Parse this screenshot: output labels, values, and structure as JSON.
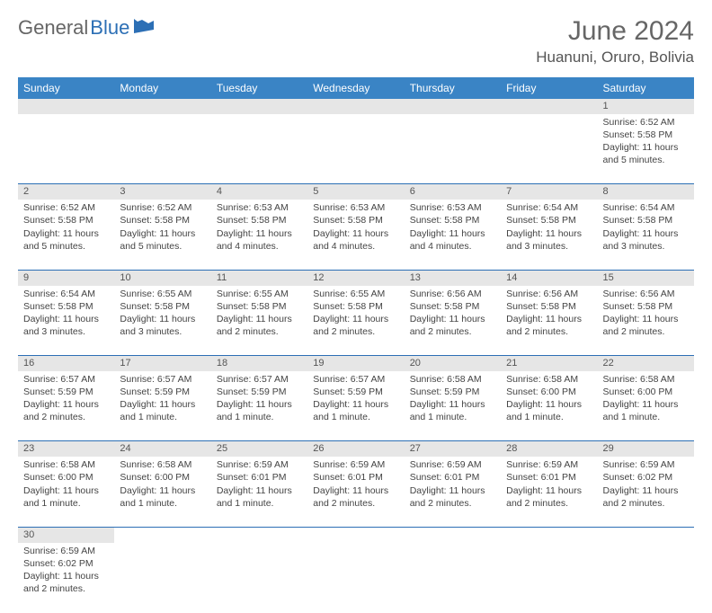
{
  "brand": {
    "part1": "General",
    "part2": "Blue"
  },
  "title": "June 2024",
  "location": "Huanuni, Oruro, Bolivia",
  "colors": {
    "header_bg": "#3a84c5",
    "border": "#2c6fb5",
    "daynum_bg": "#e6e6e6",
    "text": "#444444",
    "title_text": "#666666"
  },
  "weekdays": [
    "Sunday",
    "Monday",
    "Tuesday",
    "Wednesday",
    "Thursday",
    "Friday",
    "Saturday"
  ],
  "weeks": [
    [
      null,
      null,
      null,
      null,
      null,
      null,
      {
        "d": "1",
        "sr": "Sunrise: 6:52 AM",
        "ss": "Sunset: 5:58 PM",
        "dl": "Daylight: 11 hours and 5 minutes."
      }
    ],
    [
      {
        "d": "2",
        "sr": "Sunrise: 6:52 AM",
        "ss": "Sunset: 5:58 PM",
        "dl": "Daylight: 11 hours and 5 minutes."
      },
      {
        "d": "3",
        "sr": "Sunrise: 6:52 AM",
        "ss": "Sunset: 5:58 PM",
        "dl": "Daylight: 11 hours and 5 minutes."
      },
      {
        "d": "4",
        "sr": "Sunrise: 6:53 AM",
        "ss": "Sunset: 5:58 PM",
        "dl": "Daylight: 11 hours and 4 minutes."
      },
      {
        "d": "5",
        "sr": "Sunrise: 6:53 AM",
        "ss": "Sunset: 5:58 PM",
        "dl": "Daylight: 11 hours and 4 minutes."
      },
      {
        "d": "6",
        "sr": "Sunrise: 6:53 AM",
        "ss": "Sunset: 5:58 PM",
        "dl": "Daylight: 11 hours and 4 minutes."
      },
      {
        "d": "7",
        "sr": "Sunrise: 6:54 AM",
        "ss": "Sunset: 5:58 PM",
        "dl": "Daylight: 11 hours and 3 minutes."
      },
      {
        "d": "8",
        "sr": "Sunrise: 6:54 AM",
        "ss": "Sunset: 5:58 PM",
        "dl": "Daylight: 11 hours and 3 minutes."
      }
    ],
    [
      {
        "d": "9",
        "sr": "Sunrise: 6:54 AM",
        "ss": "Sunset: 5:58 PM",
        "dl": "Daylight: 11 hours and 3 minutes."
      },
      {
        "d": "10",
        "sr": "Sunrise: 6:55 AM",
        "ss": "Sunset: 5:58 PM",
        "dl": "Daylight: 11 hours and 3 minutes."
      },
      {
        "d": "11",
        "sr": "Sunrise: 6:55 AM",
        "ss": "Sunset: 5:58 PM",
        "dl": "Daylight: 11 hours and 2 minutes."
      },
      {
        "d": "12",
        "sr": "Sunrise: 6:55 AM",
        "ss": "Sunset: 5:58 PM",
        "dl": "Daylight: 11 hours and 2 minutes."
      },
      {
        "d": "13",
        "sr": "Sunrise: 6:56 AM",
        "ss": "Sunset: 5:58 PM",
        "dl": "Daylight: 11 hours and 2 minutes."
      },
      {
        "d": "14",
        "sr": "Sunrise: 6:56 AM",
        "ss": "Sunset: 5:58 PM",
        "dl": "Daylight: 11 hours and 2 minutes."
      },
      {
        "d": "15",
        "sr": "Sunrise: 6:56 AM",
        "ss": "Sunset: 5:58 PM",
        "dl": "Daylight: 11 hours and 2 minutes."
      }
    ],
    [
      {
        "d": "16",
        "sr": "Sunrise: 6:57 AM",
        "ss": "Sunset: 5:59 PM",
        "dl": "Daylight: 11 hours and 2 minutes."
      },
      {
        "d": "17",
        "sr": "Sunrise: 6:57 AM",
        "ss": "Sunset: 5:59 PM",
        "dl": "Daylight: 11 hours and 1 minute."
      },
      {
        "d": "18",
        "sr": "Sunrise: 6:57 AM",
        "ss": "Sunset: 5:59 PM",
        "dl": "Daylight: 11 hours and 1 minute."
      },
      {
        "d": "19",
        "sr": "Sunrise: 6:57 AM",
        "ss": "Sunset: 5:59 PM",
        "dl": "Daylight: 11 hours and 1 minute."
      },
      {
        "d": "20",
        "sr": "Sunrise: 6:58 AM",
        "ss": "Sunset: 5:59 PM",
        "dl": "Daylight: 11 hours and 1 minute."
      },
      {
        "d": "21",
        "sr": "Sunrise: 6:58 AM",
        "ss": "Sunset: 6:00 PM",
        "dl": "Daylight: 11 hours and 1 minute."
      },
      {
        "d": "22",
        "sr": "Sunrise: 6:58 AM",
        "ss": "Sunset: 6:00 PM",
        "dl": "Daylight: 11 hours and 1 minute."
      }
    ],
    [
      {
        "d": "23",
        "sr": "Sunrise: 6:58 AM",
        "ss": "Sunset: 6:00 PM",
        "dl": "Daylight: 11 hours and 1 minute."
      },
      {
        "d": "24",
        "sr": "Sunrise: 6:58 AM",
        "ss": "Sunset: 6:00 PM",
        "dl": "Daylight: 11 hours and 1 minute."
      },
      {
        "d": "25",
        "sr": "Sunrise: 6:59 AM",
        "ss": "Sunset: 6:01 PM",
        "dl": "Daylight: 11 hours and 1 minute."
      },
      {
        "d": "26",
        "sr": "Sunrise: 6:59 AM",
        "ss": "Sunset: 6:01 PM",
        "dl": "Daylight: 11 hours and 2 minutes."
      },
      {
        "d": "27",
        "sr": "Sunrise: 6:59 AM",
        "ss": "Sunset: 6:01 PM",
        "dl": "Daylight: 11 hours and 2 minutes."
      },
      {
        "d": "28",
        "sr": "Sunrise: 6:59 AM",
        "ss": "Sunset: 6:01 PM",
        "dl": "Daylight: 11 hours and 2 minutes."
      },
      {
        "d": "29",
        "sr": "Sunrise: 6:59 AM",
        "ss": "Sunset: 6:02 PM",
        "dl": "Daylight: 11 hours and 2 minutes."
      }
    ],
    [
      {
        "d": "30",
        "sr": "Sunrise: 6:59 AM",
        "ss": "Sunset: 6:02 PM",
        "dl": "Daylight: 11 hours and 2 minutes."
      },
      null,
      null,
      null,
      null,
      null,
      null
    ]
  ]
}
